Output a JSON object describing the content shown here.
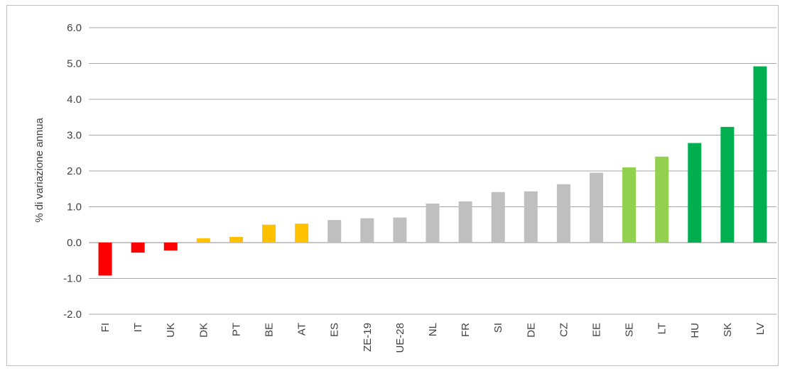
{
  "chart_data": {
    "type": "bar",
    "title": "",
    "xlabel": "",
    "ylabel": "% di variazione annua",
    "ylim": [
      -2.0,
      6.0
    ],
    "yticks": [
      "-2.0",
      "-1.0",
      "0.0",
      "1.0",
      "2.0",
      "3.0",
      "4.0",
      "5.0",
      "6.0"
    ],
    "grid": true,
    "legend": "none",
    "categories": [
      "FI",
      "IT",
      "UK",
      "DK",
      "PT",
      "BE",
      "AT",
      "ES",
      "ZE-19",
      "UE-28",
      "NL",
      "FR",
      "SI",
      "DE",
      "CZ",
      "EE",
      "SE",
      "LT",
      "HU",
      "SK",
      "LV"
    ],
    "values": [
      -0.92,
      -0.28,
      -0.22,
      0.12,
      0.16,
      0.5,
      0.53,
      0.63,
      0.68,
      0.7,
      1.09,
      1.15,
      1.41,
      1.43,
      1.63,
      1.95,
      2.1,
      2.4,
      2.78,
      3.23,
      4.92
    ],
    "colors": [
      "#ff0000",
      "#ff0000",
      "#ff0000",
      "#ffc000",
      "#ffc000",
      "#ffc000",
      "#ffc000",
      "#bfbfbf",
      "#bfbfbf",
      "#bfbfbf",
      "#bfbfbf",
      "#bfbfbf",
      "#bfbfbf",
      "#bfbfbf",
      "#bfbfbf",
      "#bfbfbf",
      "#92d050",
      "#92d050",
      "#00b050",
      "#00b050",
      "#00b050"
    ]
  }
}
